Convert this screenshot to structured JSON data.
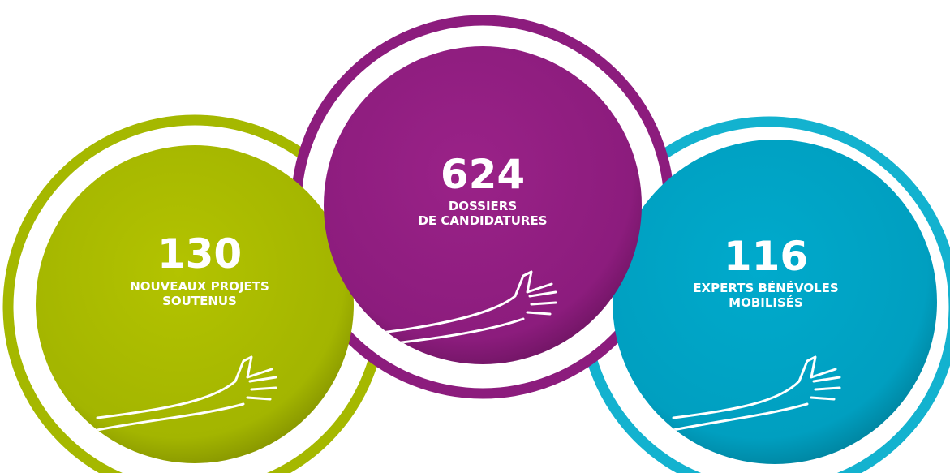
{
  "items": [
    {
      "number": "130",
      "label": [
        "NOUVEAUX PROJETS",
        "SOUTENUS"
      ]
    },
    {
      "number": "624",
      "label": [
        "DOSSIERS",
        "DE CANDIDATURES"
      ]
    },
    {
      "number": "116",
      "label": [
        "EXPERTS BÉNÉVOLES",
        "MOBILISÉS"
      ]
    }
  ]
}
